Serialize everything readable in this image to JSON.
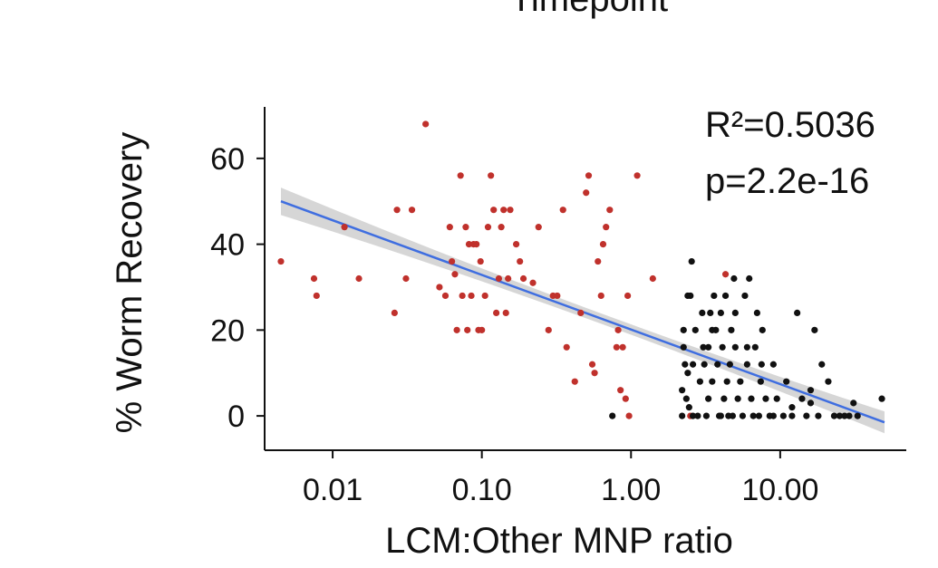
{
  "chart_data": {
    "type": "scatter",
    "title": "Timepoint",
    "xlabel": "LCM:Other MNP ratio",
    "ylabel": "% Worm Recovery",
    "x_scale": "log10",
    "xlim": [
      0.0035,
      70
    ],
    "ylim": [
      -8,
      72
    ],
    "x_ticks": [
      0.01,
      0.1,
      1,
      10
    ],
    "x_tick_labels": [
      "0.01",
      "0.10",
      "1.00",
      "10.00"
    ],
    "y_ticks": [
      0,
      20,
      40,
      60
    ],
    "y_tick_labels": [
      "0",
      "20",
      "40",
      "60"
    ],
    "annotations": {
      "r2": "R²=0.5036",
      "p": "p=2.2e-16"
    },
    "fit_line": {
      "x": [
        0.0045,
        50
      ],
      "y": [
        50,
        -1.5
      ],
      "ci_halfwidth_ends": 3.2,
      "ci_halfwidth_center": 1.2
    },
    "colors": {
      "series_a": "#c0312c",
      "series_b": "#111111",
      "fit": "#3f6ee0",
      "ci": "#cfcfcf"
    },
    "series": [
      {
        "color": "series_a",
        "points": [
          [
            0.0045,
            36
          ],
          [
            0.0075,
            32
          ],
          [
            0.0078,
            28
          ],
          [
            0.012,
            44
          ],
          [
            0.015,
            32
          ],
          [
            0.026,
            24
          ],
          [
            0.027,
            48
          ],
          [
            0.031,
            32
          ],
          [
            0.034,
            48
          ],
          [
            0.042,
            68
          ],
          [
            0.052,
            30
          ],
          [
            0.057,
            28
          ],
          [
            0.061,
            44
          ],
          [
            0.063,
            36
          ],
          [
            0.066,
            33
          ],
          [
            0.068,
            20
          ],
          [
            0.072,
            56
          ],
          [
            0.074,
            28
          ],
          [
            0.078,
            44
          ],
          [
            0.08,
            20
          ],
          [
            0.082,
            40
          ],
          [
            0.085,
            28
          ],
          [
            0.088,
            40
          ],
          [
            0.092,
            40
          ],
          [
            0.095,
            20
          ],
          [
            0.098,
            36
          ],
          [
            0.1,
            20
          ],
          [
            0.105,
            28
          ],
          [
            0.11,
            44
          ],
          [
            0.115,
            56
          ],
          [
            0.12,
            48
          ],
          [
            0.125,
            24
          ],
          [
            0.13,
            32
          ],
          [
            0.135,
            44
          ],
          [
            0.14,
            48
          ],
          [
            0.145,
            24
          ],
          [
            0.15,
            32
          ],
          [
            0.155,
            48
          ],
          [
            0.17,
            40
          ],
          [
            0.18,
            36
          ],
          [
            0.19,
            32
          ],
          [
            0.22,
            31
          ],
          [
            0.24,
            44
          ],
          [
            0.28,
            20
          ],
          [
            0.32,
            28
          ],
          [
            0.35,
            48
          ],
          [
            0.37,
            16
          ],
          [
            0.42,
            8
          ],
          [
            0.46,
            24
          ],
          [
            0.5,
            52
          ],
          [
            0.52,
            56
          ],
          [
            0.55,
            12
          ],
          [
            0.6,
            36
          ],
          [
            0.63,
            28
          ],
          [
            0.65,
            40
          ],
          [
            0.68,
            44
          ],
          [
            0.72,
            48
          ],
          [
            0.8,
            16
          ],
          [
            0.82,
            20
          ],
          [
            0.85,
            6
          ],
          [
            0.88,
            16
          ],
          [
            0.92,
            4
          ],
          [
            0.95,
            28
          ],
          [
            1.1,
            56
          ],
          [
            1.4,
            32
          ],
          [
            2.5,
            0
          ],
          [
            4.3,
            33
          ],
          [
            0.57,
            10
          ],
          [
            0.97,
            0
          ],
          [
            0.3,
            28
          ]
        ]
      },
      {
        "color": "series_b",
        "points": [
          [
            0.75,
            0
          ],
          [
            2.2,
            0
          ],
          [
            2.2,
            6
          ],
          [
            2.25,
            16
          ],
          [
            2.3,
            12
          ],
          [
            2.35,
            4
          ],
          [
            2.4,
            10
          ],
          [
            2.45,
            2
          ],
          [
            2.5,
            28
          ],
          [
            2.55,
            36
          ],
          [
            2.6,
            12
          ],
          [
            2.7,
            20
          ],
          [
            2.8,
            0
          ],
          [
            2.9,
            8
          ],
          [
            3.0,
            24
          ],
          [
            3.05,
            16
          ],
          [
            3.1,
            12
          ],
          [
            3.2,
            0
          ],
          [
            3.3,
            4
          ],
          [
            3.4,
            24
          ],
          [
            3.5,
            8
          ],
          [
            3.6,
            28
          ],
          [
            3.7,
            20
          ],
          [
            3.8,
            12
          ],
          [
            3.9,
            0
          ],
          [
            4.0,
            24
          ],
          [
            4.1,
            16
          ],
          [
            4.2,
            4
          ],
          [
            4.3,
            28
          ],
          [
            4.4,
            8
          ],
          [
            4.5,
            0
          ],
          [
            4.6,
            12
          ],
          [
            4.7,
            20
          ],
          [
            4.8,
            0
          ],
          [
            4.9,
            32
          ],
          [
            5.0,
            16
          ],
          [
            5.2,
            4
          ],
          [
            5.4,
            8
          ],
          [
            5.6,
            0
          ],
          [
            5.8,
            28
          ],
          [
            6.0,
            12
          ],
          [
            6.2,
            32
          ],
          [
            6.4,
            4
          ],
          [
            6.6,
            0
          ],
          [
            6.8,
            16
          ],
          [
            7.0,
            24
          ],
          [
            7.2,
            0
          ],
          [
            7.4,
            8
          ],
          [
            7.6,
            20
          ],
          [
            8.0,
            4
          ],
          [
            8.5,
            0
          ],
          [
            9.0,
            12
          ],
          [
            9.5,
            4
          ],
          [
            10.5,
            0
          ],
          [
            11,
            8
          ],
          [
            12,
            0
          ],
          [
            13,
            24
          ],
          [
            14,
            4
          ],
          [
            15,
            0
          ],
          [
            16,
            6
          ],
          [
            17,
            20
          ],
          [
            18,
            0
          ],
          [
            19,
            12
          ],
          [
            21,
            8
          ],
          [
            23,
            0
          ],
          [
            25,
            0
          ],
          [
            27,
            0
          ],
          [
            29,
            0
          ],
          [
            31,
            3
          ],
          [
            33,
            0
          ],
          [
            48,
            4
          ],
          [
            2.25,
            20
          ],
          [
            2.4,
            28
          ],
          [
            2.6,
            0
          ],
          [
            3.3,
            16
          ],
          [
            3.5,
            20
          ],
          [
            4.0,
            0
          ],
          [
            5.0,
            24
          ],
          [
            6.0,
            16
          ],
          [
            7.5,
            12
          ],
          [
            9.0,
            0
          ],
          [
            12,
            2
          ],
          [
            16,
            3
          ]
        ]
      }
    ]
  }
}
